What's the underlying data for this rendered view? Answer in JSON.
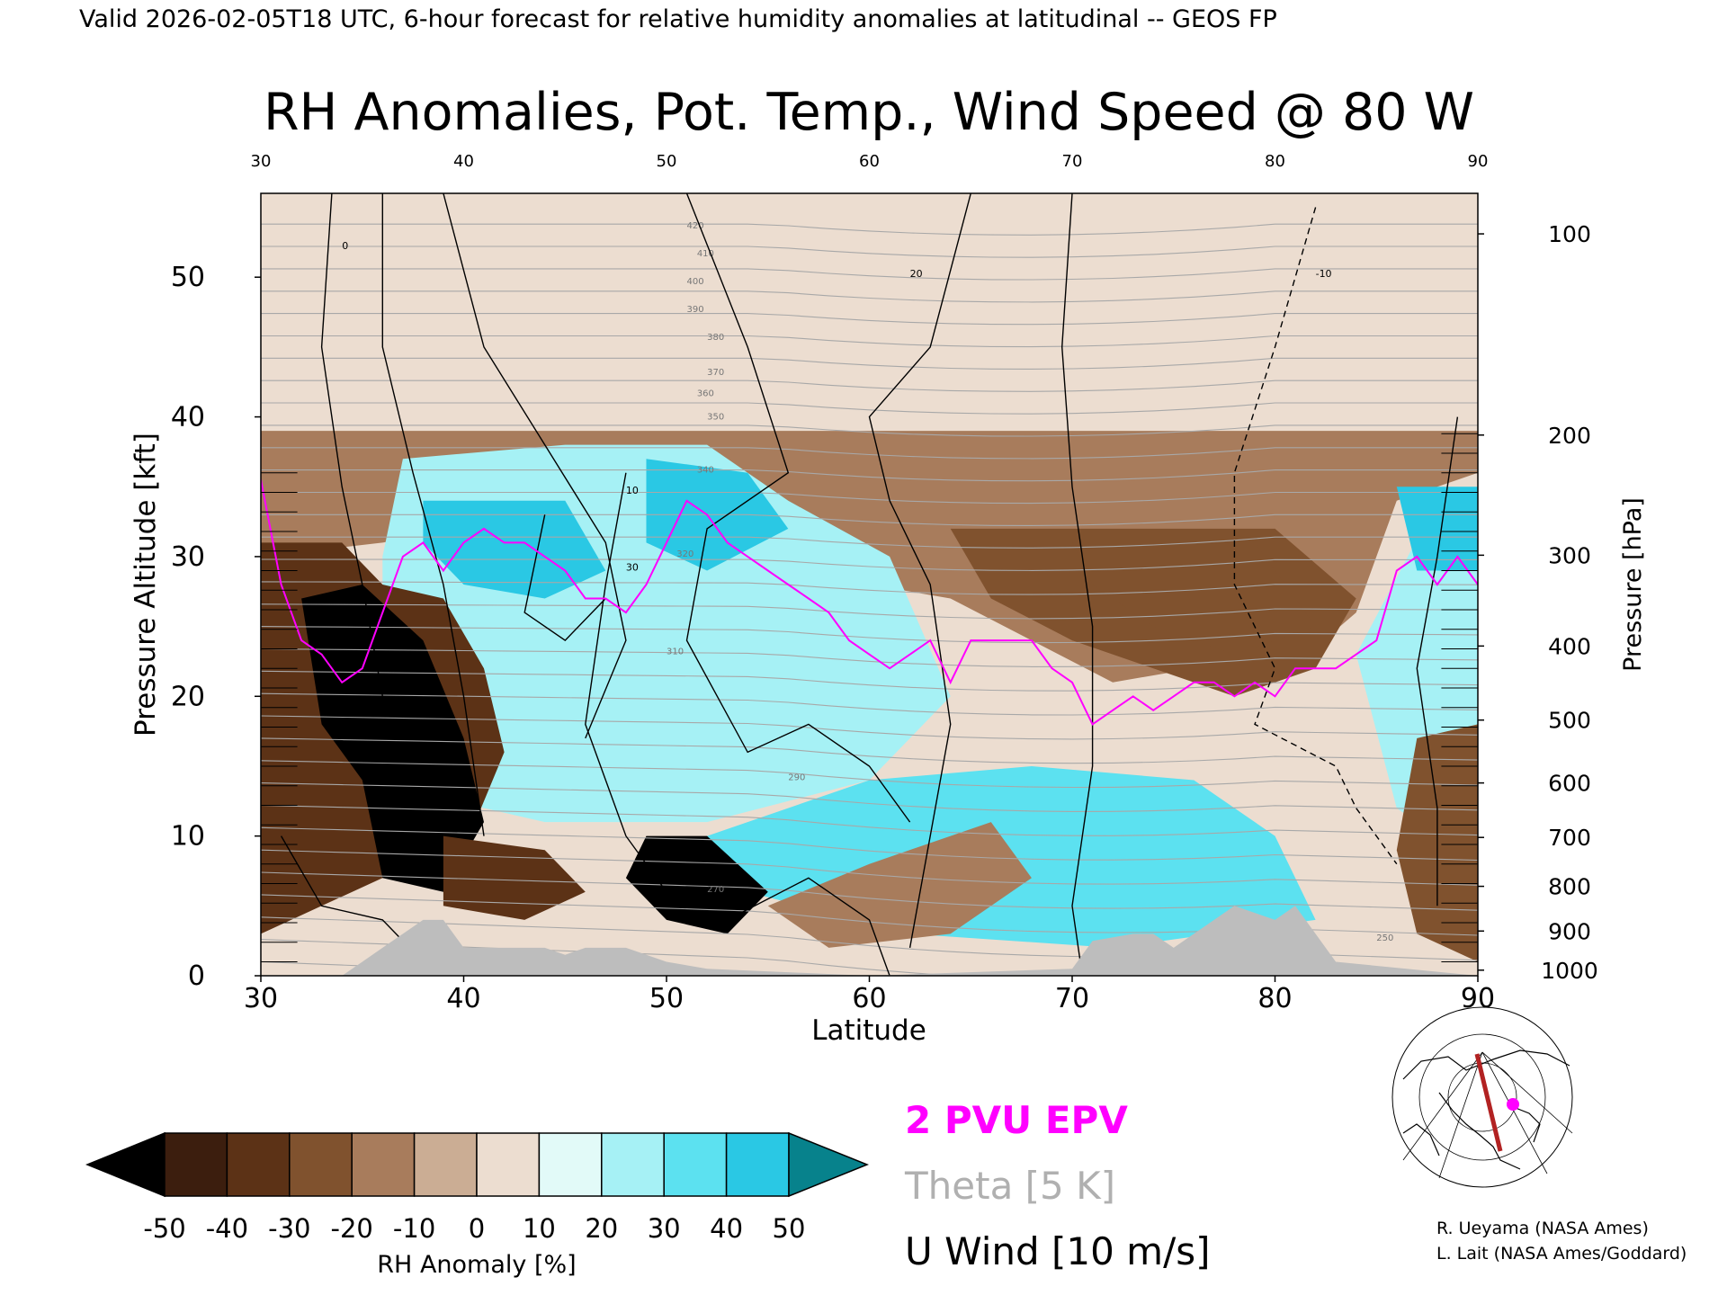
{
  "header": {
    "valid_line": "Valid 2026-02-05T18 UTC, 6-hour forecast for relative humidity anomalies at latitudinal -- GEOS FP"
  },
  "chart_data": {
    "type": "heatmap",
    "title": "RH Anomalies, Pot. Temp., Wind Speed @ 80 W",
    "xlabel": "Latitude",
    "ylabel_left": "Pressure Altitude [kft]",
    "ylabel_right": "Pressure [hPa]",
    "xlim": [
      30,
      90
    ],
    "ylim": [
      0,
      56
    ],
    "x_ticks": [
      "30",
      "40",
      "50",
      "60",
      "70",
      "80",
      "90"
    ],
    "y_ticks": [
      "0",
      "10",
      "20",
      "30",
      "40",
      "50"
    ],
    "pressure_ticks": [
      {
        "label": "100",
        "kft": 53.1
      },
      {
        "label": "200",
        "kft": 38.7
      },
      {
        "label": "300",
        "kft": 30.1
      },
      {
        "label": "400",
        "kft": 23.6
      },
      {
        "label": "500",
        "kft": 18.3
      },
      {
        "label": "600",
        "kft": 13.8
      },
      {
        "label": "700",
        "kft": 9.9
      },
      {
        "label": "800",
        "kft": 6.4
      },
      {
        "label": "900",
        "kft": 3.2
      },
      {
        "label": "1000",
        "kft": 0.4
      }
    ],
    "rh_regions": [
      {
        "anomaly": 5,
        "points": [
          [
            30,
            55
          ],
          [
            90,
            55
          ],
          [
            90,
            0
          ],
          [
            30,
            0
          ]
        ]
      },
      {
        "anomaly": -15,
        "points": [
          [
            30,
            39
          ],
          [
            90,
            39
          ],
          [
            90,
            36
          ],
          [
            86,
            34
          ],
          [
            84,
            26
          ],
          [
            80,
            21
          ],
          [
            76,
            22
          ],
          [
            72,
            21
          ],
          [
            68,
            24
          ],
          [
            64,
            27
          ],
          [
            60,
            28
          ],
          [
            56,
            30
          ],
          [
            52,
            34
          ],
          [
            46,
            33
          ],
          [
            40,
            32
          ],
          [
            36,
            31
          ],
          [
            30,
            30
          ]
        ]
      },
      {
        "anomaly": -22,
        "points": [
          [
            64,
            32
          ],
          [
            80,
            32
          ],
          [
            84,
            27
          ],
          [
            82,
            22
          ],
          [
            78,
            20
          ],
          [
            74,
            22
          ],
          [
            70,
            24
          ],
          [
            66,
            27
          ]
        ]
      },
      {
        "anomaly": -30,
        "points": [
          [
            70,
            31
          ],
          [
            79,
            31
          ],
          [
            82,
            25
          ],
          [
            78,
            23
          ],
          [
            74,
            25
          ],
          [
            71,
            28
          ]
        ]
      },
      {
        "anomaly": 25,
        "points": [
          [
            37,
            37
          ],
          [
            45,
            38
          ],
          [
            52,
            38
          ],
          [
            56,
            34
          ],
          [
            61,
            30
          ],
          [
            64,
            20
          ],
          [
            60,
            14
          ],
          [
            52,
            11
          ],
          [
            44,
            11
          ],
          [
            38,
            13
          ],
          [
            36,
            22
          ],
          [
            36,
            30
          ]
        ]
      },
      {
        "anomaly": 42,
        "points": [
          [
            38,
            34
          ],
          [
            45,
            34
          ],
          [
            47,
            29
          ],
          [
            44,
            27
          ],
          [
            40,
            28
          ],
          [
            38,
            31
          ]
        ]
      },
      {
        "anomaly": 44,
        "points": [
          [
            49,
            37
          ],
          [
            54,
            36
          ],
          [
            56,
            32
          ],
          [
            52,
            29
          ],
          [
            49,
            31
          ]
        ]
      },
      {
        "anomaly": 30,
        "points": [
          [
            60,
            14
          ],
          [
            68,
            15
          ],
          [
            76,
            14
          ],
          [
            80,
            10
          ],
          [
            82,
            4
          ],
          [
            72,
            2
          ],
          [
            62,
            3
          ],
          [
            54,
            6
          ],
          [
            52,
            10
          ]
        ]
      },
      {
        "anomaly": 28,
        "points": [
          [
            84,
            23
          ],
          [
            88,
            34
          ],
          [
            90,
            34
          ],
          [
            90,
            17
          ],
          [
            88,
            10
          ],
          [
            86,
            12
          ]
        ]
      },
      {
        "anomaly": 44,
        "points": [
          [
            86,
            35
          ],
          [
            90,
            35
          ],
          [
            90,
            29
          ],
          [
            87,
            29
          ]
        ]
      },
      {
        "anomaly": -32,
        "points": [
          [
            30,
            31
          ],
          [
            34,
            31
          ],
          [
            36,
            28
          ],
          [
            39,
            27
          ],
          [
            41,
            22
          ],
          [
            42,
            16
          ],
          [
            40,
            9
          ],
          [
            36,
            7
          ],
          [
            33,
            5
          ],
          [
            30,
            3
          ]
        ]
      },
      {
        "anomaly": -55,
        "points": [
          [
            32,
            27
          ],
          [
            35,
            28
          ],
          [
            38,
            24
          ],
          [
            40,
            17
          ],
          [
            41,
            11
          ],
          [
            39,
            6
          ],
          [
            36,
            7
          ],
          [
            35,
            14
          ],
          [
            33,
            18
          ]
        ]
      },
      {
        "anomaly": -35,
        "points": [
          [
            39,
            10
          ],
          [
            44,
            9
          ],
          [
            46,
            6
          ],
          [
            43,
            4
          ],
          [
            39,
            5
          ]
        ]
      },
      {
        "anomaly": -55,
        "points": [
          [
            49,
            10
          ],
          [
            52,
            10
          ],
          [
            55,
            6
          ],
          [
            53,
            3
          ],
          [
            50,
            4
          ],
          [
            48,
            7
          ]
        ]
      },
      {
        "anomaly": -25,
        "points": [
          [
            87,
            17
          ],
          [
            90,
            18
          ],
          [
            90,
            1
          ],
          [
            87,
            3
          ],
          [
            86,
            9
          ]
        ]
      },
      {
        "anomaly": -12,
        "points": [
          [
            60,
            8
          ],
          [
            66,
            11
          ],
          [
            68,
            7
          ],
          [
            64,
            3
          ],
          [
            58,
            2
          ],
          [
            55,
            5
          ]
        ]
      }
    ],
    "series": [
      {
        "name": "2 PVU EPV",
        "color": "#ff00ff",
        "x": [
          30,
          31,
          32,
          33,
          34,
          35,
          36,
          37,
          38,
          39,
          40,
          41,
          42,
          43,
          44,
          45,
          46,
          47,
          48,
          49,
          50,
          51,
          52,
          53,
          54,
          55,
          56,
          57,
          58,
          59,
          60,
          61,
          62,
          63,
          64,
          65,
          66,
          67,
          68,
          69,
          70,
          71,
          72,
          73,
          74,
          75,
          76,
          77,
          78,
          79,
          80,
          81,
          82,
          83,
          84,
          85,
          86,
          87,
          88,
          89,
          90
        ],
        "y": [
          35.5,
          28,
          24,
          23,
          21,
          22,
          26,
          30,
          31,
          29,
          31,
          32,
          31,
          31,
          30,
          29,
          27,
          27,
          26,
          28,
          31,
          34,
          33,
          31,
          30,
          29,
          28,
          27,
          26,
          24,
          23,
          22,
          23,
          24,
          21,
          24,
          24,
          24,
          24,
          22,
          21,
          18,
          19,
          20,
          19,
          20,
          21,
          21,
          20,
          21,
          20,
          22,
          22,
          22,
          23,
          24,
          29,
          30,
          28,
          30,
          28
        ]
      },
      {
        "name": "Theta [5 K]",
        "color": "#a8a8a8",
        "labels": [
          "250",
          "270",
          "290",
          "310",
          "320",
          "340",
          "350",
          "360",
          "370",
          "380",
          "390",
          "400",
          "410",
          "420"
        ]
      },
      {
        "name": "U Wind [10 m/s]",
        "color": "#000000",
        "labels": [
          "0",
          "10",
          "20",
          "30",
          "-10"
        ]
      }
    ],
    "topography_kft": [
      [
        30,
        0
      ],
      [
        34,
        0
      ],
      [
        35,
        1
      ],
      [
        36,
        2
      ],
      [
        37,
        3
      ],
      [
        38,
        4
      ],
      [
        39,
        4
      ],
      [
        40,
        2
      ],
      [
        41,
        2
      ],
      [
        42,
        2
      ],
      [
        44,
        2
      ],
      [
        45,
        1.5
      ],
      [
        46,
        2
      ],
      [
        48,
        2
      ],
      [
        50,
        1
      ],
      [
        52,
        0.5
      ],
      [
        60,
        0
      ],
      [
        70,
        0.5
      ],
      [
        71,
        2.5
      ],
      [
        73,
        3
      ],
      [
        74,
        3
      ],
      [
        75,
        2
      ],
      [
        76,
        3
      ],
      [
        78,
        5
      ],
      [
        80,
        4
      ],
      [
        81,
        5
      ],
      [
        82,
        3
      ],
      [
        83,
        1
      ],
      [
        90,
        0
      ]
    ],
    "colorbar": {
      "label": "RH Anomaly [%]",
      "ticks": [
        "-50",
        "-40",
        "-30",
        "-20",
        "-10",
        "0",
        "10",
        "20",
        "30",
        "40",
        "50"
      ],
      "colors": [
        "#000000",
        "#3c1e0e",
        "#5c3216",
        "#80522e",
        "#a87c5c",
        "#cbad94",
        "#ecddd0",
        "#e2faf8",
        "#a6f1f5",
        "#5ce1f0",
        "#2ac8e4",
        "#1298b4",
        "#07828c"
      ]
    },
    "legend": {
      "epv": "2 PVU EPV",
      "theta": "Theta [5 K]",
      "wind": "U Wind [10 m/s]"
    }
  },
  "inset_map": {
    "title_hint": "",
    "marker_color": "#ff00ff",
    "section_color": "#b22222"
  },
  "credits": {
    "line1": "R. Ueyama (NASA Ames)",
    "line2": "L. Lait (NASA Ames/Goddard)"
  }
}
